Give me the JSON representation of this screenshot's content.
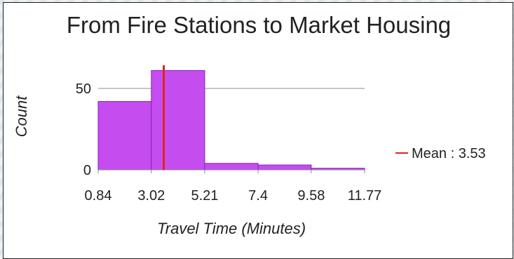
{
  "chart_data": {
    "type": "bar",
    "title": "From Fire Stations to Market Housing",
    "xlabel": "Travel Time (Minutes)",
    "ylabel": "Count",
    "x_ticks": [
      "0.84",
      "3.02",
      "5.21",
      "7.4",
      "9.58",
      "11.77"
    ],
    "y_ticks": [
      0,
      50
    ],
    "bins": [
      {
        "from": 0.84,
        "to": 3.02,
        "count": 42
      },
      {
        "from": 3.02,
        "to": 5.21,
        "count": 61
      },
      {
        "from": 5.21,
        "to": 7.4,
        "count": 4
      },
      {
        "from": 7.4,
        "to": 9.58,
        "count": 3
      },
      {
        "from": 9.58,
        "to": 11.77,
        "count": 1
      }
    ],
    "ylim": [
      0,
      63
    ],
    "mean": 3.53,
    "legend": {
      "label": "Mean : 3.53",
      "position": "right"
    },
    "colors": {
      "bar_fill": "#c54df0",
      "bar_stroke": "#8a1fc0",
      "mean_line": "#e0231a",
      "grid": "#8c8c8c"
    }
  }
}
